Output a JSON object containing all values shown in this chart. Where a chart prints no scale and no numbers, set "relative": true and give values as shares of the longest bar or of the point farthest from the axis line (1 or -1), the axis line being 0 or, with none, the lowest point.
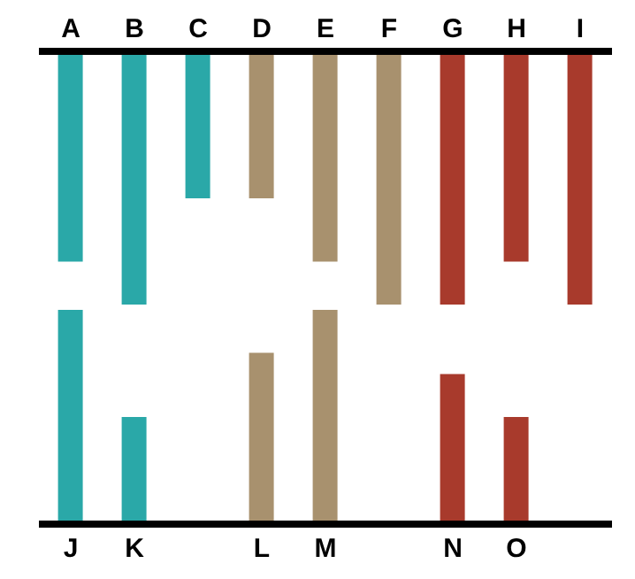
{
  "chart_data": [
    {
      "type": "bar",
      "relative": true,
      "categories": [
        "A",
        "B",
        "C",
        "D",
        "E",
        "F",
        "G",
        "H",
        "I"
      ],
      "values": [
        -0.83,
        -1,
        -0.58,
        -0.58,
        -0.83,
        -1,
        -1,
        -0.83,
        -1
      ],
      "colors": [
        "#2aa8a8",
        "#2aa8a8",
        "#2aa8a8",
        "#a8916e",
        "#a8916e",
        "#a8916e",
        "#a83a2c",
        "#a83a2c",
        "#a83a2c"
      ]
    },
    {
      "type": "bar",
      "relative": true,
      "categories": [
        "J",
        "K",
        null,
        "L",
        "M",
        null,
        "N",
        "O",
        null
      ],
      "values": [
        1,
        0.5,
        null,
        0.8,
        1,
        null,
        0.7,
        0.5,
        null
      ],
      "colors": [
        "#2aa8a8",
        "#2aa8a8",
        null,
        "#a8916e",
        "#a8916e",
        null,
        "#a83a2c",
        "#a83a2c",
        null
      ]
    }
  ]
}
